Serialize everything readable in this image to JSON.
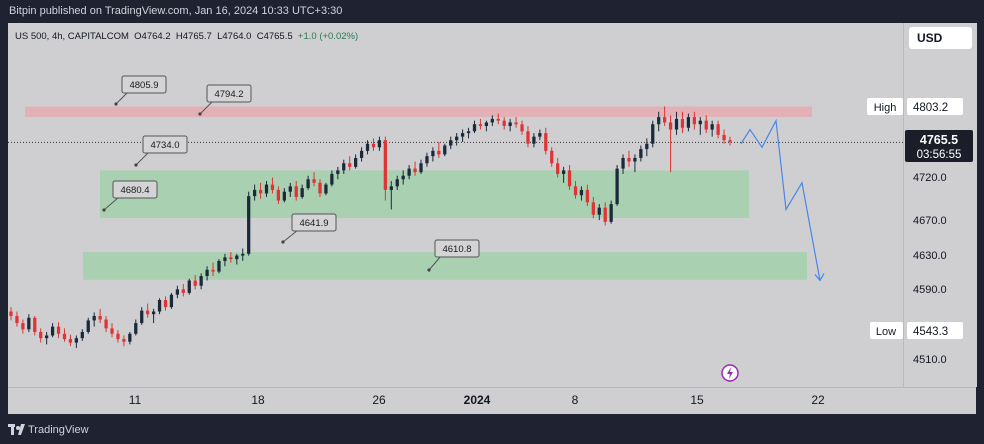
{
  "header": {
    "published": "Bitpin published on TradingView.com, Jan 16, 2024 10:33 UTC+3:30"
  },
  "symbol": {
    "name": "US 500, 4h, CAPITALCOM",
    "open": "O4764.2",
    "high": "H4765.7",
    "low": "L4764.0",
    "close": "C4765.5",
    "change": "+1.0 (+0.02%)"
  },
  "currency": "USD",
  "footer": {
    "brand": "TradingView"
  },
  "colors": {
    "up": "#1b2a3a",
    "down": "#e03434",
    "resistance": "#e8a5ab",
    "support": "#8fd19b",
    "projection": "#4a86e8",
    "accent": "#9c27b0"
  },
  "chart_data": {
    "type": "candlestick",
    "title": "",
    "xlabel": "",
    "ylabel": "",
    "x_ticks": [
      "11",
      "18",
      "26",
      "2024",
      "8",
      "15",
      "22"
    ],
    "y_ticks": [
      4510.0,
      4590.0,
      4630.0,
      4670.0,
      4720.0
    ],
    "ylim": [
      4490,
      4900
    ],
    "last_price": "4765.5",
    "countdown": "03:56:55",
    "high_label": "High",
    "high_value": "4803.2",
    "low_label": "Low",
    "low_value": "4543.3",
    "resistance_zone": [
      4794.2,
      4805.9
    ],
    "support_zones": [
      {
        "from": 4680.4,
        "to": 4734.0
      },
      {
        "from": 4610.8,
        "to": 4641.9
      }
    ],
    "callouts": [
      "4805.9",
      "4794.2",
      "4734.0",
      "4680.4",
      "4641.9",
      "4610.8"
    ],
    "candles": [
      [
        4575,
        4580,
        4565,
        4570
      ],
      [
        4570,
        4575,
        4558,
        4562
      ],
      [
        4562,
        4566,
        4550,
        4555
      ],
      [
        4555,
        4572,
        4552,
        4568
      ],
      [
        4568,
        4570,
        4548,
        4552
      ],
      [
        4552,
        4556,
        4540,
        4545
      ],
      [
        4545,
        4552,
        4538,
        4548
      ],
      [
        4548,
        4562,
        4546,
        4558
      ],
      [
        4558,
        4563,
        4545,
        4550
      ],
      [
        4550,
        4556,
        4541,
        4544
      ],
      [
        4544,
        4549,
        4536,
        4540
      ],
      [
        4540,
        4548,
        4534,
        4545
      ],
      [
        4545,
        4555,
        4542,
        4552
      ],
      [
        4552,
        4568,
        4550,
        4565
      ],
      [
        4565,
        4574,
        4558,
        4570
      ],
      [
        4570,
        4578,
        4562,
        4566
      ],
      [
        4566,
        4570,
        4552,
        4556
      ],
      [
        4556,
        4562,
        4546,
        4550
      ],
      [
        4550,
        4554,
        4540,
        4544
      ],
      [
        4544,
        4548,
        4536,
        4541
      ],
      [
        4541,
        4552,
        4538,
        4550
      ],
      [
        4550,
        4566,
        4548,
        4562
      ],
      [
        4562,
        4580,
        4560,
        4576
      ],
      [
        4576,
        4584,
        4568,
        4572
      ],
      [
        4572,
        4578,
        4562,
        4575
      ],
      [
        4575,
        4590,
        4572,
        4588
      ],
      [
        4588,
        4592,
        4576,
        4580
      ],
      [
        4580,
        4596,
        4578,
        4594
      ],
      [
        4594,
        4604,
        4590,
        4600
      ],
      [
        4600,
        4606,
        4592,
        4596
      ],
      [
        4596,
        4612,
        4594,
        4610
      ],
      [
        4610,
        4616,
        4600,
        4604
      ],
      [
        4604,
        4618,
        4600,
        4615
      ],
      [
        4615,
        4626,
        4610,
        4622
      ],
      [
        4622,
        4630,
        4615,
        4620
      ],
      [
        4620,
        4634,
        4618,
        4632
      ],
      [
        4632,
        4640,
        4626,
        4636
      ],
      [
        4636,
        4642,
        4630,
        4634
      ],
      [
        4634,
        4640,
        4628,
        4638
      ],
      [
        4638,
        4646,
        4632,
        4640
      ],
      [
        4640,
        4710,
        4638,
        4705
      ],
      [
        4705,
        4718,
        4700,
        4712
      ],
      [
        4712,
        4720,
        4702,
        4708
      ],
      [
        4708,
        4722,
        4704,
        4718
      ],
      [
        4718,
        4726,
        4708,
        4712
      ],
      [
        4712,
        4716,
        4696,
        4700
      ],
      [
        4700,
        4714,
        4698,
        4710
      ],
      [
        4710,
        4720,
        4704,
        4716
      ],
      [
        4716,
        4722,
        4700,
        4704
      ],
      [
        4704,
        4718,
        4702,
        4714
      ],
      [
        4714,
        4728,
        4712,
        4724
      ],
      [
        4724,
        4732,
        4716,
        4720
      ],
      [
        4720,
        4724,
        4704,
        4708
      ],
      [
        4708,
        4720,
        4706,
        4718
      ],
      [
        4718,
        4734,
        4716,
        4730
      ],
      [
        4730,
        4738,
        4724,
        4734
      ],
      [
        4734,
        4746,
        4730,
        4742
      ],
      [
        4742,
        4750,
        4734,
        4738
      ],
      [
        4738,
        4752,
        4736,
        4748
      ],
      [
        4748,
        4760,
        4744,
        4756
      ],
      [
        4756,
        4768,
        4752,
        4764
      ],
      [
        4764,
        4770,
        4756,
        4760
      ],
      [
        4760,
        4772,
        4756,
        4768
      ],
      [
        4768,
        4772,
        4700,
        4712
      ],
      [
        4712,
        4722,
        4690,
        4716
      ],
      [
        4716,
        4728,
        4712,
        4724
      ],
      [
        4724,
        4734,
        4718,
        4728
      ],
      [
        4728,
        4740,
        4724,
        4736
      ],
      [
        4736,
        4744,
        4728,
        4732
      ],
      [
        4732,
        4746,
        4730,
        4742
      ],
      [
        4742,
        4754,
        4738,
        4750
      ],
      [
        4750,
        4760,
        4744,
        4756
      ],
      [
        4756,
        4766,
        4748,
        4752
      ],
      [
        4752,
        4764,
        4750,
        4762
      ],
      [
        4762,
        4772,
        4758,
        4768
      ],
      [
        4768,
        4776,
        4762,
        4772
      ],
      [
        4772,
        4780,
        4766,
        4776
      ],
      [
        4776,
        4782,
        4770,
        4778
      ],
      [
        4778,
        4790,
        4776,
        4786
      ],
      [
        4786,
        4792,
        4780,
        4784
      ],
      [
        4784,
        4790,
        4778,
        4788
      ],
      [
        4788,
        4796,
        4784,
        4792
      ],
      [
        4792,
        4798,
        4786,
        4790
      ],
      [
        4790,
        4794,
        4780,
        4784
      ],
      [
        4784,
        4792,
        4778,
        4788
      ],
      [
        4788,
        4794,
        4782,
        4786
      ],
      [
        4786,
        4790,
        4774,
        4778
      ],
      [
        4778,
        4784,
        4760,
        4764
      ],
      [
        4764,
        4776,
        4760,
        4772
      ],
      [
        4772,
        4780,
        4768,
        4776
      ],
      [
        4776,
        4782,
        4752,
        4756
      ],
      [
        4756,
        4760,
        4738,
        4742
      ],
      [
        4742,
        4748,
        4726,
        4730
      ],
      [
        4730,
        4738,
        4720,
        4734
      ],
      [
        4734,
        4740,
        4712,
        4716
      ],
      [
        4716,
        4722,
        4702,
        4706
      ],
      [
        4706,
        4716,
        4700,
        4712
      ],
      [
        4712,
        4718,
        4694,
        4698
      ],
      [
        4698,
        4704,
        4680,
        4684
      ],
      [
        4684,
        4696,
        4678,
        4692
      ],
      [
        4692,
        4698,
        4672,
        4676
      ],
      [
        4676,
        4700,
        4674,
        4696
      ],
      [
        4696,
        4740,
        4694,
        4736
      ],
      [
        4736,
        4752,
        4730,
        4748
      ],
      [
        4748,
        4756,
        4738,
        4744
      ],
      [
        4744,
        4752,
        4732,
        4748
      ],
      [
        4748,
        4762,
        4744,
        4758
      ],
      [
        4758,
        4770,
        4750,
        4764
      ],
      [
        4764,
        4790,
        4760,
        4786
      ],
      [
        4786,
        4800,
        4778,
        4794
      ],
      [
        4794,
        4806,
        4784,
        4788
      ],
      [
        4788,
        4796,
        4732,
        4780
      ],
      [
        4780,
        4800,
        4774,
        4792
      ],
      [
        4792,
        4800,
        4776,
        4782
      ],
      [
        4782,
        4798,
        4778,
        4794
      ],
      [
        4794,
        4800,
        4780,
        4786
      ],
      [
        4786,
        4794,
        4774,
        4790
      ],
      [
        4790,
        4796,
        4776,
        4780
      ],
      [
        4780,
        4790,
        4772,
        4786
      ],
      [
        4786,
        4790,
        4770,
        4774
      ],
      [
        4774,
        4780,
        4764,
        4768
      ],
      [
        4768,
        4772,
        4762,
        4766
      ]
    ],
    "projection": [
      4764,
      4780,
      4760,
      4790,
      4690,
      4720,
      4610
    ]
  }
}
